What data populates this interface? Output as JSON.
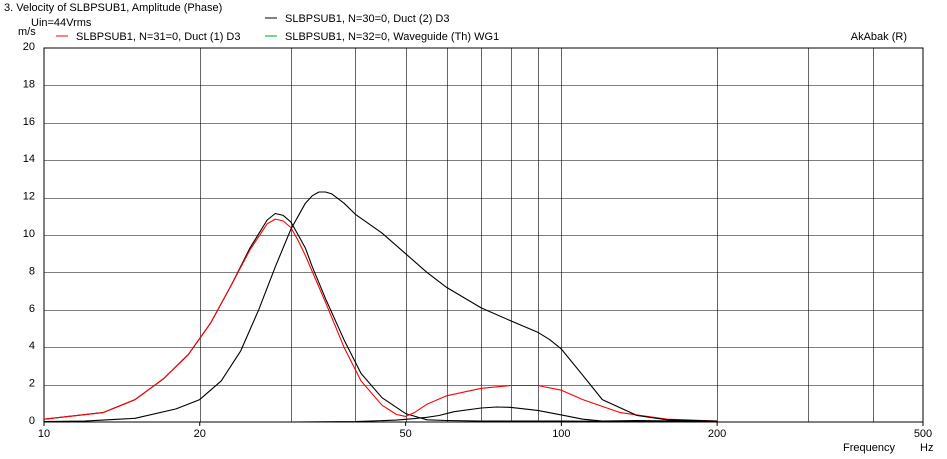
{
  "chart_data": {
    "type": "line",
    "title": "3. Velocity of SLBPSUB1, Amplitude (Phase)",
    "subtitle": "Uin=44Vrms",
    "brand": "AkAbak (R)",
    "xlabel": "Frequency",
    "xunit": "Hz",
    "ylabel": "m/s",
    "xscale": "log",
    "xlim": [
      10,
      500
    ],
    "ylim": [
      0,
      20
    ],
    "x_ticks": [
      10,
      20,
      50,
      100,
      200,
      500
    ],
    "x_tick_labels": [
      "10",
      "20",
      "50",
      "100",
      "200",
      "500"
    ],
    "y_ticks": [
      0,
      2,
      4,
      6,
      8,
      10,
      12,
      14,
      16,
      18,
      20
    ],
    "y_tick_labels": [
      "0",
      "2",
      "4",
      "6",
      "8",
      "10",
      "12",
      "14",
      "16",
      "18",
      "20"
    ],
    "grid": true,
    "legend_position": "top",
    "series": [
      {
        "name": "SLBPSUB1, N=30=0, Duct (2) D3",
        "color": "#000000",
        "x": [
          10,
          13,
          15,
          17,
          19,
          21,
          23,
          25,
          27,
          28,
          29,
          30,
          31,
          32,
          33,
          35,
          38,
          41,
          45,
          50,
          55,
          60,
          70,
          80,
          90,
          100,
          120,
          140,
          170,
          200
        ],
        "y": [
          0.15,
          0.5,
          1.2,
          2.3,
          3.6,
          5.3,
          7.3,
          9.3,
          10.8,
          11.15,
          11.05,
          10.7,
          10.0,
          9.3,
          8.3,
          6.6,
          4.4,
          2.6,
          1.3,
          0.45,
          0.12,
          0.08,
          0.05,
          0.05,
          0.05,
          0.05,
          0.04,
          0.04,
          0.03,
          0.03
        ]
      },
      {
        "name": "SLBPSUB1, N=31=0, Duct (1) D3",
        "color": "#ff0000",
        "x": [
          10,
          13,
          15,
          17,
          19,
          21,
          23,
          25,
          27,
          28,
          29,
          30,
          31,
          32,
          35,
          38,
          41,
          45,
          48,
          50,
          52,
          55,
          60,
          70,
          80,
          90,
          100,
          110,
          130,
          160,
          200
        ],
        "y": [
          0.15,
          0.5,
          1.2,
          2.3,
          3.6,
          5.3,
          7.3,
          9.2,
          10.6,
          10.85,
          10.75,
          10.4,
          9.7,
          8.9,
          6.4,
          4.0,
          2.2,
          0.9,
          0.4,
          0.3,
          0.5,
          0.95,
          1.4,
          1.8,
          1.95,
          1.95,
          1.7,
          1.2,
          0.5,
          0.15,
          0.05
        ]
      },
      {
        "name": "SLBPSUB1, N=32=0, Waveguide (Th) WG1",
        "color": "#00a000",
        "x": [],
        "y": []
      },
      {
        "name": "",
        "color": "#000000",
        "x": [
          10,
          12,
          15,
          18,
          20,
          22,
          24,
          26,
          28,
          30,
          32,
          33,
          34,
          35,
          36,
          38,
          40,
          45,
          50,
          55,
          60,
          70,
          80,
          90,
          95,
          100,
          110,
          120,
          140,
          160,
          200
        ],
        "y": [
          0.02,
          0.05,
          0.2,
          0.7,
          1.2,
          2.2,
          3.8,
          6.0,
          8.3,
          10.3,
          11.7,
          12.1,
          12.3,
          12.3,
          12.2,
          11.7,
          11.1,
          10.1,
          9.0,
          8.0,
          7.2,
          6.1,
          5.4,
          4.8,
          4.4,
          3.9,
          2.5,
          1.2,
          0.35,
          0.12,
          0.05
        ]
      },
      {
        "name": "",
        "color": "#000000",
        "x": [
          10,
          30,
          40,
          48,
          52,
          55,
          58,
          62,
          70,
          75,
          80,
          90,
          100,
          110,
          120,
          140,
          170,
          200
        ],
        "y": [
          0.0,
          0.0,
          0.02,
          0.1,
          0.18,
          0.25,
          0.35,
          0.55,
          0.75,
          0.8,
          0.78,
          0.62,
          0.38,
          0.15,
          0.05,
          0.08,
          0.05,
          0.03
        ]
      }
    ]
  }
}
